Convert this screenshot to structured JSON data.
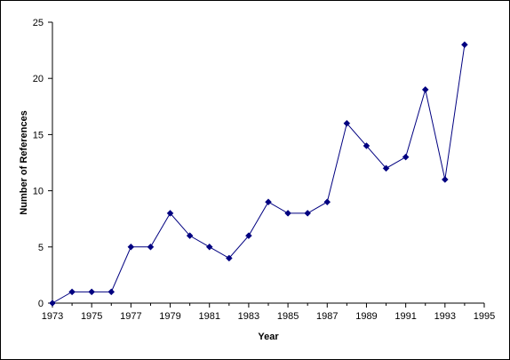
{
  "chart_data": {
    "type": "line",
    "title": "",
    "xlabel": "Year",
    "ylabel": "Number of References",
    "xlim": [
      1973,
      1995
    ],
    "ylim": [
      0,
      25
    ],
    "x_ticks": [
      1973,
      1975,
      1977,
      1979,
      1981,
      1983,
      1985,
      1987,
      1989,
      1991,
      1993,
      1995
    ],
    "y_ticks": [
      0,
      5,
      10,
      15,
      20,
      25
    ],
    "grid": false,
    "legend": "none",
    "marker": "diamond",
    "series": [
      {
        "color": "#000080",
        "x": [
          1973,
          1974,
          1975,
          1976,
          1977,
          1978,
          1979,
          1980,
          1981,
          1982,
          1983,
          1984,
          1985,
          1986,
          1987,
          1988,
          1989,
          1990,
          1991,
          1992,
          1993,
          1994
        ],
        "y": [
          0,
          1,
          1,
          1,
          5,
          5,
          8,
          6,
          5,
          4,
          6,
          9,
          8,
          8,
          9,
          16,
          14,
          12,
          13,
          19,
          11,
          23
        ]
      }
    ]
  }
}
